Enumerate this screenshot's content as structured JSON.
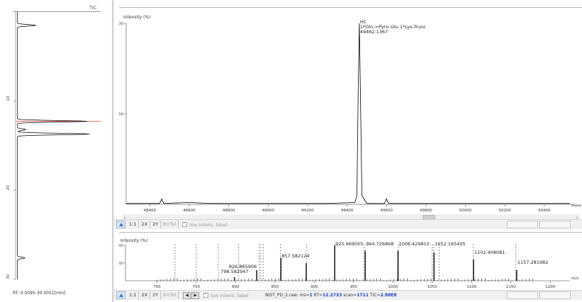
{
  "tic_panel": {
    "label": "TIC",
    "ticks": [
      "10",
      "20",
      "30"
    ],
    "rt_readout": "RT: 0.0095-30.0051[min]"
  },
  "upper_chart": {
    "y_title": "Intensity (%)",
    "y_ticks": [
      "100",
      "50"
    ],
    "x_unit": "Mass",
    "x_ticks": [
      "48400",
      "48600",
      "48800",
      "49000",
      "49200",
      "49400",
      "49600",
      "49800",
      "50000",
      "50200",
      "50400"
    ],
    "annotation": [
      "HC",
      "1*Gln->Pyro-Glu 1*Lys-Trunc",
      "49462.1367"
    ]
  },
  "upper_toolbar": {
    "btn_11": "1:1",
    "btn_2x": "2X",
    "btn_2y": "2Y",
    "btn_errtol": "ErrTol",
    "checkbox_label": "low intens. label"
  },
  "lower_chart": {
    "y_title": "Intensity (%)",
    "y_ticks": [
      "100",
      "50"
    ],
    "x_unit": "m/z",
    "x_ticks": [
      "700",
      "750",
      "800",
      "850",
      "900",
      "950",
      "1000",
      "1050",
      "1100",
      "1150",
      "1200"
    ],
    "peak_labels": [
      "826.865906",
      "798.582947",
      "857.582124",
      "925.969055",
      "964.726868",
      "1006.429810",
      "1052.165405",
      "1102.408081",
      "1157.281982"
    ]
  },
  "lower_toolbar": {
    "btn_11": "1:1",
    "btn_2x": "2X",
    "btn_2y": "2Y",
    "btn_errtol": "ErrTol",
    "nav_prev": "◀",
    "nav_next": "▶",
    "checkbox_label": "low intens. label",
    "status_prefix": "NIST_PD_2.raw: ms=",
    "status_ms": "1",
    "status_rt_label": " RT=",
    "status_rt": "12.2733",
    "status_scan_label": " scan=",
    "status_scan": "1711",
    "status_tic_label": " TIC=",
    "status_tic": "2.88E8"
  },
  "chart_data": [
    {
      "type": "line",
      "title": "TIC",
      "xlabel": "",
      "ylabel": "",
      "orientation": "vertical (RT runs top to bottom)",
      "rt_range": [
        0.0095,
        30.0051
      ],
      "rt_ticks": [
        10,
        20,
        30
      ],
      "highlight_rt": 12.27,
      "peaks": [
        {
          "rt": 1.5,
          "relative_intensity": 0.22
        },
        {
          "rt": 12.27,
          "relative_intensity": 0.82
        },
        {
          "rt": 13.2,
          "relative_intensity": 0.1
        },
        {
          "rt": 13.7,
          "relative_intensity": 0.85
        },
        {
          "rt": 27.6,
          "relative_intensity": 0.09
        }
      ]
    },
    {
      "type": "line",
      "title": "",
      "xlabel": "Mass",
      "ylabel": "Intensity (%)",
      "xlim": [
        48280,
        50530
      ],
      "ylim": [
        0,
        100
      ],
      "x": [
        48280,
        48450,
        48460,
        48470,
        48600,
        48700,
        49300,
        49440,
        49450,
        49456,
        49462,
        49468,
        49475,
        49500,
        49590,
        49600,
        49610,
        50530
      ],
      "y": [
        0.5,
        0.5,
        3,
        0.5,
        1,
        0.5,
        0.5,
        1,
        5,
        60,
        100,
        60,
        5,
        0.5,
        0.5,
        3,
        0.5,
        0.5
      ],
      "annotation": "HC 1*Gln->Pyro-Glu 1*Lys-Trunc 49462.1367"
    },
    {
      "type": "bar",
      "title": "",
      "xlabel": "m/z",
      "ylabel": "Intensity (%)",
      "xlim": [
        660,
        1225
      ],
      "ylim": [
        0,
        100
      ],
      "peaks": [
        {
          "mz": 798.582947,
          "intensity": 10
        },
        {
          "mz": 826.865906,
          "intensity": 30
        },
        {
          "mz": 857.582124,
          "intensity": 65
        },
        {
          "mz": 889.8,
          "intensity": 50
        },
        {
          "mz": 925.969055,
          "intensity": 100
        },
        {
          "mz": 964.726868,
          "intensity": 85
        },
        {
          "mz": 1006.42981,
          "intensity": 85
        },
        {
          "mz": 1052.165405,
          "intensity": 80
        },
        {
          "mz": 1102.408081,
          "intensity": 60
        },
        {
          "mz": 1157.281982,
          "intensity": 30
        }
      ],
      "dashed_marker_mz": [
        723,
        750,
        778,
        804,
        830,
        832,
        835,
        857,
        890,
        926,
        963,
        1007,
        1050,
        1052,
        1059,
        1102,
        1156
      ]
    }
  ]
}
